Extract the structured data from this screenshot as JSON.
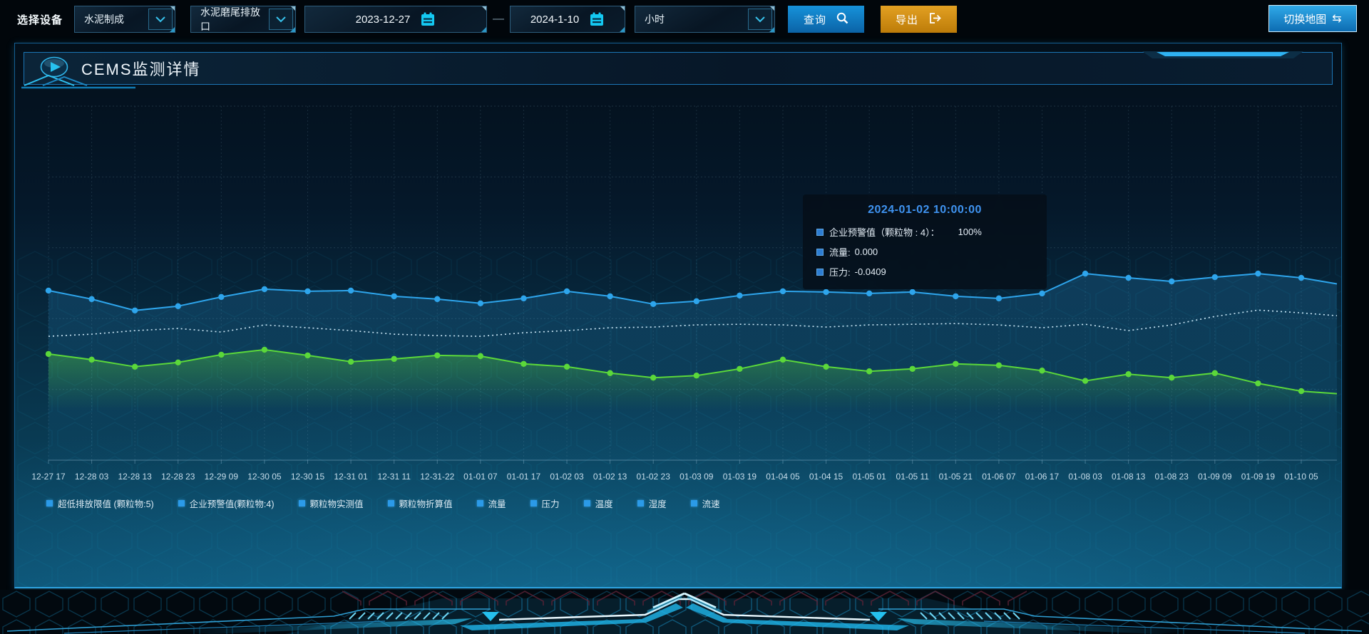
{
  "toolbar": {
    "device_label": "选择设备",
    "select_device_group": "水泥制成",
    "select_outlet": "水泥磨尾排放口",
    "date_start": "2023-12-27",
    "date_separator": "—",
    "date_end": "2024-1-10",
    "granularity": "小时",
    "query_label": "查询",
    "export_label": "导出",
    "switch_map_label": "切换地图",
    "switch_map_icon": "⇆"
  },
  "panel": {
    "title": "CEMS监测详情"
  },
  "tooltip": {
    "title": "2024-01-02 10:00:00",
    "rows": [
      {
        "label": "企业预警值（颗粒物 : 4）：",
        "value": "100%"
      },
      {
        "label": "流量:",
        "value": "0.000"
      },
      {
        "label": "压力:",
        "value": "-0.0409"
      }
    ]
  },
  "legend": {
    "items": [
      "超低排放限值 (颗粒物:5)",
      "企业预警值(颗粒物:4)",
      "颗粒物实测值",
      "颗粒物折算值",
      "流量",
      "压力",
      "温度",
      "湿度",
      "流速"
    ],
    "marker_color": "#2b9ae8"
  },
  "chart_data": {
    "type": "line",
    "title": "CEMS监测详情",
    "xlabel": "",
    "ylabel": "",
    "grid": true,
    "legend_position": "bottom",
    "y_axis_labels_visible": false,
    "x_labels": [
      "12-27 17",
      "12-28 03",
      "12-28 13",
      "12-28 23",
      "12-29 09",
      "12-30 05",
      "12-30 15",
      "12-31 01",
      "12-31 11",
      "12-31-22",
      "01-01 07",
      "01-01 17",
      "01-02 03",
      "01-02 13",
      "01-02 23",
      "01-03 09",
      "01-03 19",
      "01-04 05",
      "01-04 15",
      "01-05 01",
      "01-05 11",
      "01-05 21",
      "01-06 07",
      "01-06 17",
      "01-08 03",
      "01-08 13",
      "01-08 23",
      "01-09 09",
      "01-09 19",
      "01-10 05"
    ],
    "value_scale_note": "values are percent of plot height from bottom (y axis unlabeled in UI)",
    "series": [
      {
        "name": "企业预警值(颗粒物:4)",
        "color": "#e9f5fa",
        "style": "dashed",
        "area": false,
        "edge_pct": 40.8,
        "values_pct": [
          35.0,
          35.6,
          36.6,
          37.2,
          36.2,
          38.2,
          37.4,
          36.6,
          35.6,
          35.2,
          35.0,
          36.0,
          36.6,
          37.4,
          37.6,
          38.2,
          38.4,
          38.2,
          37.6,
          38.2,
          38.4,
          38.6,
          38.2,
          37.4,
          38.4,
          36.6,
          38.2,
          40.6,
          42.4,
          41.6
        ]
      },
      {
        "name": "流量",
        "color": "#2ea5ec",
        "style": "line-dots",
        "area": true,
        "edge_pct": 49.8,
        "values_pct": [
          47.9,
          45.5,
          42.3,
          43.5,
          46.1,
          48.3,
          47.7,
          47.9,
          46.3,
          45.5,
          44.3,
          45.7,
          47.7,
          46.3,
          44.1,
          44.9,
          46.5,
          47.7,
          47.5,
          47.1,
          47.5,
          46.3,
          45.7,
          47.1,
          52.7,
          51.5,
          50.5,
          51.7,
          52.7,
          51.5
        ]
      },
      {
        "name": "压力",
        "color": "#5bd83a",
        "style": "line-dots",
        "area": true,
        "edge_pct": 18.8,
        "values_pct": [
          30.0,
          28.4,
          26.4,
          27.6,
          29.8,
          31.2,
          29.6,
          27.8,
          28.6,
          29.6,
          29.4,
          27.2,
          26.4,
          24.6,
          23.3,
          23.9,
          25.8,
          28.4,
          26.4,
          25.1,
          25.8,
          27.2,
          26.8,
          25.3,
          22.4,
          24.3,
          23.3,
          24.6,
          21.7,
          19.5
        ]
      }
    ]
  }
}
